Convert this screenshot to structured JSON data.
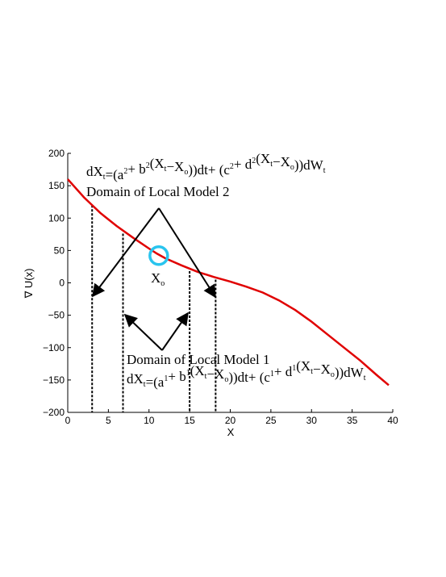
{
  "chart_data": {
    "type": "line",
    "xlabel": "X",
    "ylabel": "∇ U(x)",
    "xlim": [
      0,
      40
    ],
    "ylim": [
      -200,
      200
    ],
    "xticks": [
      0,
      5,
      10,
      15,
      20,
      25,
      30,
      35,
      40
    ],
    "yticks": [
      200,
      150,
      100,
      50,
      0,
      -50,
      -100,
      -150,
      -200
    ],
    "x_tick_labels": [
      "0",
      "5",
      "10",
      "15",
      "20",
      "25",
      "30",
      "35",
      "40"
    ],
    "y_tick_labels": [
      "200",
      "150",
      "100",
      "50",
      "0",
      "−50",
      "−100",
      "−150",
      "−200"
    ],
    "series": [
      {
        "color": "#e00000",
        "x": [
          0,
          2,
          4,
          6,
          8,
          10,
          11,
          12,
          14,
          16,
          18,
          20,
          22,
          24,
          26,
          28,
          30,
          32,
          34,
          36,
          38,
          39.5
        ],
        "y": [
          160,
          132,
          108,
          88,
          70,
          53,
          45,
          38,
          27,
          17,
          9,
          2,
          -6,
          -15,
          -27,
          -42,
          -60,
          -80,
          -100,
          -120,
          -142,
          -158
        ]
      }
    ],
    "domain_lines_x": [
      3,
      6.8,
      15,
      18.2
    ],
    "domain_lines_top": [
      120,
      76,
      18,
      5
    ],
    "marker": {
      "x": 11.2,
      "y": 42,
      "color": "#29c4ee",
      "label_main": "X",
      "label_sub": "o"
    },
    "annotations": {
      "model2_title": "Domain of Local Model 2",
      "model1_title": "Domain of Local Model 1",
      "model2_eq": [
        {
          "t": "dX",
          "s": ""
        },
        {
          "t": "t",
          "s": "sub"
        },
        {
          "t": "=(a",
          "s": ""
        },
        {
          "t": "2",
          "s": "sup"
        },
        {
          "t": "+ b",
          "s": ""
        },
        {
          "t": "2",
          "s": "sup"
        },
        {
          "t": "(X",
          "s": ""
        },
        {
          "t": "t",
          "s": "sub"
        },
        {
          "t": "−X",
          "s": ""
        },
        {
          "t": "o",
          "s": "sub"
        },
        {
          "t": "))dt+ (c",
          "s": ""
        },
        {
          "t": "2",
          "s": "sup"
        },
        {
          "t": "+ d",
          "s": ""
        },
        {
          "t": "2",
          "s": "sup"
        },
        {
          "t": "(X",
          "s": ""
        },
        {
          "t": "t",
          "s": "sub"
        },
        {
          "t": "−X",
          "s": ""
        },
        {
          "t": "o",
          "s": "sub"
        },
        {
          "t": "))dW",
          "s": ""
        },
        {
          "t": "t",
          "s": "sub"
        }
      ],
      "model1_eq": [
        {
          "t": "dX",
          "s": ""
        },
        {
          "t": "t",
          "s": "sub"
        },
        {
          "t": "=(a",
          "s": ""
        },
        {
          "t": "1",
          "s": "sup"
        },
        {
          "t": "+ b",
          "s": ""
        },
        {
          "t": "1",
          "s": "sup"
        },
        {
          "t": "(X",
          "s": ""
        },
        {
          "t": "t",
          "s": "sub"
        },
        {
          "t": "−X",
          "s": ""
        },
        {
          "t": "o",
          "s": "sub"
        },
        {
          "t": "))dt+ (c",
          "s": ""
        },
        {
          "t": "1",
          "s": "sup"
        },
        {
          "t": "+ d",
          "s": ""
        },
        {
          "t": "1",
          "s": "sup"
        },
        {
          "t": "(X",
          "s": ""
        },
        {
          "t": "t",
          "s": "sub"
        },
        {
          "t": "−X",
          "s": ""
        },
        {
          "t": "o",
          "s": "sub"
        },
        {
          "t": "))dW",
          "s": ""
        },
        {
          "t": "t",
          "s": "sub"
        }
      ]
    }
  }
}
